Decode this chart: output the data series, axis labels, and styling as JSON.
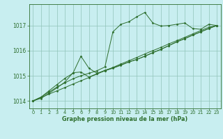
{
  "xlabel": "Graphe pression niveau de la mer (hPa)",
  "xlim": [
    -0.5,
    23.5
  ],
  "ylim": [
    1013.7,
    1017.85
  ],
  "yticks": [
    1014,
    1015,
    1016,
    1017
  ],
  "xticks": [
    0,
    1,
    2,
    3,
    4,
    5,
    6,
    7,
    8,
    9,
    10,
    11,
    12,
    13,
    14,
    15,
    16,
    17,
    18,
    19,
    20,
    21,
    22,
    23
  ],
  "bg_color": "#c8eef0",
  "grid_color": "#90c4b8",
  "line_color": "#2d6e2d",
  "lines": [
    {
      "x": [
        0,
        1,
        2,
        3,
        4,
        5,
        6,
        7,
        8,
        9,
        10,
        11,
        12,
        13,
        14,
        15,
        16,
        17,
        18,
        19,
        20,
        21,
        22,
        23
      ],
      "y": [
        1014.0,
        1014.13,
        1014.27,
        1014.4,
        1014.53,
        1014.67,
        1014.8,
        1014.93,
        1015.07,
        1015.2,
        1015.33,
        1015.47,
        1015.6,
        1015.73,
        1015.87,
        1016.0,
        1016.13,
        1016.27,
        1016.4,
        1016.53,
        1016.67,
        1016.8,
        1016.93,
        1017.0
      ]
    },
    {
      "x": [
        0,
        1,
        2,
        3,
        4,
        5,
        6,
        7,
        8,
        9,
        10,
        11,
        12,
        13,
        14,
        15,
        16,
        17,
        18,
        19,
        20,
        21,
        22,
        23
      ],
      "y": [
        1014.0,
        1014.15,
        1014.35,
        1014.55,
        1014.72,
        1014.88,
        1015.0,
        1015.1,
        1015.2,
        1015.35,
        1016.75,
        1017.05,
        1017.15,
        1017.35,
        1017.52,
        1017.1,
        1016.98,
        1017.0,
        1017.05,
        1017.1,
        1016.88,
        1016.85,
        1017.05,
        1017.0
      ]
    },
    {
      "x": [
        0,
        1,
        2,
        3,
        4,
        5,
        6,
        7,
        8,
        9,
        10,
        11,
        12,
        13,
        14,
        15,
        16,
        17,
        18,
        19,
        20,
        21,
        22,
        23
      ],
      "y": [
        1014.0,
        1014.15,
        1014.4,
        1014.65,
        1014.9,
        1015.1,
        1015.78,
        1015.3,
        1015.1,
        1015.2,
        1015.3,
        1015.42,
        1015.55,
        1015.65,
        1015.78,
        1015.92,
        1016.05,
        1016.2,
        1016.35,
        1016.48,
        1016.62,
        1016.75,
        1016.88,
        1017.0
      ]
    },
    {
      "x": [
        0,
        1,
        2,
        3,
        4,
        5,
        6,
        7,
        8,
        9,
        10,
        11,
        12,
        13,
        14,
        15,
        16,
        17,
        18,
        19,
        20,
        21,
        22,
        23
      ],
      "y": [
        1014.0,
        1014.1,
        1014.3,
        1014.52,
        1014.75,
        1015.12,
        1015.15,
        1014.95,
        1015.08,
        1015.22,
        1015.32,
        1015.43,
        1015.55,
        1015.65,
        1015.78,
        1015.92,
        1016.05,
        1016.2,
        1016.35,
        1016.48,
        1016.62,
        1016.75,
        1016.88,
        1017.0
      ]
    }
  ]
}
